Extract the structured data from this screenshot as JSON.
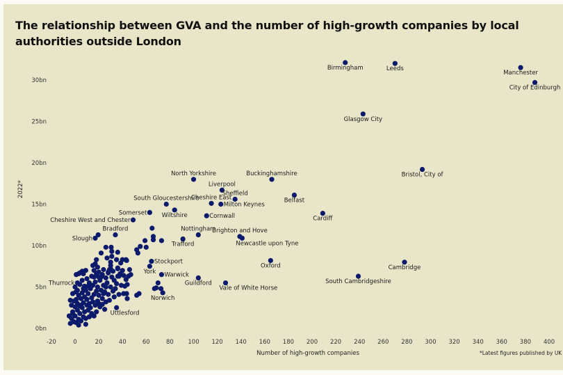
{
  "chart_data": {
    "type": "scatter",
    "title": "The relationship between GVA and the number of high-growth companies by local authorities outside London",
    "xlabel": "Number of high-growth companies",
    "ylabel": "2022*",
    "footnote": "*Latest figures published by UK go",
    "xlim": [
      -20,
      400
    ],
    "ylim": [
      0,
      30
    ],
    "x_ticks": [
      "-20",
      "0",
      "20",
      "40",
      "60",
      "80",
      "100",
      "120",
      "140",
      "160",
      "180",
      "200",
      "220",
      "240",
      "260",
      "280",
      "300",
      "320",
      "340",
      "360",
      "380",
      "400"
    ],
    "y_ticks": [
      "0bn",
      "5bn",
      "10bn",
      "15bn",
      "20bn",
      "25bn",
      "30bn"
    ],
    "y_tick_values": [
      0,
      5,
      10,
      15,
      20,
      25,
      30
    ],
    "x_tick_values": [
      -20,
      0,
      20,
      40,
      60,
      80,
      100,
      120,
      140,
      160,
      180,
      200,
      220,
      240,
      260,
      280,
      300,
      320,
      340,
      360,
      380,
      400
    ],
    "grid": false,
    "marker_color": "#0c1a6b",
    "labeled_points": [
      {
        "name": "Birmingham",
        "x": 228,
        "y": 32.1,
        "label_pos": "below"
      },
      {
        "name": "Leeds",
        "x": 270,
        "y": 32.0,
        "label_pos": "below"
      },
      {
        "name": "Manchester",
        "x": 376,
        "y": 31.5,
        "label_pos": "below"
      },
      {
        "name": "City of Edinburgh",
        "x": 388,
        "y": 29.7,
        "label_pos": "below"
      },
      {
        "name": "Glasgow City",
        "x": 243,
        "y": 25.9,
        "label_pos": "below"
      },
      {
        "name": "Bristol, City of",
        "x": 293,
        "y": 19.2,
        "label_pos": "below"
      },
      {
        "name": "Buckinghamshire",
        "x": 166,
        "y": 18.0,
        "label_pos": "above"
      },
      {
        "name": "North Yorkshire",
        "x": 100,
        "y": 18.0,
        "label_pos": "above"
      },
      {
        "name": "Liverpool",
        "x": 124,
        "y": 16.7,
        "label_pos": "above"
      },
      {
        "name": "Sheffield",
        "x": 135,
        "y": 15.6,
        "label_pos": "above"
      },
      {
        "name": "Belfast",
        "x": 185,
        "y": 16.1,
        "label_pos": "below"
      },
      {
        "name": "Cheshire East",
        "x": 115,
        "y": 15.1,
        "label_pos": "above"
      },
      {
        "name": "Milton Keynes",
        "x": 123,
        "y": 15.0,
        "label_pos": "right"
      },
      {
        "name": "Cardiff",
        "x": 209,
        "y": 13.9,
        "label_pos": "below"
      },
      {
        "name": "South Gloucestershire",
        "x": 77,
        "y": 15.0,
        "label_pos": "above"
      },
      {
        "name": "Somerset",
        "x": 63,
        "y": 14.0,
        "label_pos": "left"
      },
      {
        "name": "Wiltshire",
        "x": 84,
        "y": 14.3,
        "label_pos": "below"
      },
      {
        "name": "Cornwall",
        "x": 111,
        "y": 13.6,
        "label_pos": "right"
      },
      {
        "name": "Cheshire West and Chester",
        "x": 49,
        "y": 13.1,
        "label_pos": "left"
      },
      {
        "name": "Nottingham",
        "x": 104,
        "y": 11.3,
        "label_pos": "above"
      },
      {
        "name": "Brighton and Hove",
        "x": 139,
        "y": 11.1,
        "label_pos": "above"
      },
      {
        "name": "Newcastle upon Tyne",
        "x": 141,
        "y": 10.9,
        "label_pos": "below-right"
      },
      {
        "name": "Trafford",
        "x": 91,
        "y": 10.8,
        "label_pos": "below"
      },
      {
        "name": "Bradford",
        "x": 34,
        "y": 11.3,
        "label_pos": "above"
      },
      {
        "name": "Slough",
        "x": 17,
        "y": 10.9,
        "label_pos": "left"
      },
      {
        "name": "Stockport",
        "x": 64.5,
        "y": 8.1,
        "label_pos": "right"
      },
      {
        "name": "York",
        "x": 63,
        "y": 7.5,
        "label_pos": "below"
      },
      {
        "name": "Warwick",
        "x": 73,
        "y": 6.5,
        "label_pos": "right"
      },
      {
        "name": "Guildford",
        "x": 104,
        "y": 6.1,
        "label_pos": "below"
      },
      {
        "name": "Norwich",
        "x": 74,
        "y": 4.3,
        "label_pos": "below"
      },
      {
        "name": "Vale of White Horse",
        "x": 127,
        "y": 5.5,
        "label_pos": "below-right"
      },
      {
        "name": "Oxford",
        "x": 165,
        "y": 8.2,
        "label_pos": "below"
      },
      {
        "name": "Cambridge",
        "x": 278,
        "y": 8.0,
        "label_pos": "below"
      },
      {
        "name": "South Cambridgeshire",
        "x": 239,
        "y": 6.3,
        "label_pos": "below"
      },
      {
        "name": "Thurrock",
        "x": 2,
        "y": 5.5,
        "label_pos": "left"
      },
      {
        "name": "Uttlesford",
        "x": 35,
        "y": 2.5,
        "label_pos": "below-right"
      }
    ],
    "other_points": [
      [
        -5,
        1.5
      ],
      [
        -4,
        0.6
      ],
      [
        -3,
        1.2
      ],
      [
        -2,
        2
      ],
      [
        -1,
        0.8
      ],
      [
        0,
        1.5
      ],
      [
        1,
        0.7
      ],
      [
        2,
        2.2
      ],
      [
        3,
        1.1
      ],
      [
        4,
        1.8
      ],
      [
        5,
        0.9
      ],
      [
        6,
        2.5
      ],
      [
        7,
        1.4
      ],
      [
        8,
        2
      ],
      [
        9,
        1.2
      ],
      [
        10,
        2.8
      ],
      [
        -3,
        2.8
      ],
      [
        -1,
        3.3
      ],
      [
        0,
        2.6
      ],
      [
        1,
        3.5
      ],
      [
        2,
        3
      ],
      [
        3,
        4
      ],
      [
        4,
        2.7
      ],
      [
        5,
        3.6
      ],
      [
        6,
        4.3
      ],
      [
        7,
        3.1
      ],
      [
        8,
        3.8
      ],
      [
        9,
        4.6
      ],
      [
        10,
        3.5
      ],
      [
        11,
        4.2
      ],
      [
        12,
        3
      ],
      [
        13,
        4.8
      ],
      [
        14,
        3.7
      ],
      [
        15,
        5.2
      ],
      [
        16,
        4.1
      ],
      [
        17,
        5.6
      ],
      [
        18,
        4.5
      ],
      [
        19,
        5
      ],
      [
        20,
        4
      ],
      [
        21,
        5.8
      ],
      [
        22,
        4.6
      ],
      [
        23,
        3.6
      ],
      [
        24,
        5.2
      ],
      [
        25,
        4.4
      ],
      [
        26,
        3.2
      ],
      [
        27,
        5.5
      ],
      [
        28,
        4.1
      ],
      [
        29,
        3.4
      ],
      [
        30,
        5
      ],
      [
        32,
        4.5
      ],
      [
        33,
        3.8
      ],
      [
        -2,
        4.2
      ],
      [
        -4,
        3.4
      ],
      [
        0,
        5
      ],
      [
        2,
        4.6
      ],
      [
        4,
        5.3
      ],
      [
        6,
        5.8
      ],
      [
        8,
        5.1
      ],
      [
        10,
        6
      ],
      [
        12,
        5.5
      ],
      [
        14,
        6.3
      ],
      [
        16,
        7
      ],
      [
        17,
        7.8
      ],
      [
        18,
        6.6
      ],
      [
        20,
        6.8
      ],
      [
        22,
        6.2
      ],
      [
        24,
        7.1
      ],
      [
        11,
        2.2
      ],
      [
        13,
        2.5
      ],
      [
        15,
        3.2
      ],
      [
        17,
        2.8
      ],
      [
        19,
        3.3
      ],
      [
        21,
        2.6
      ],
      [
        23,
        2.9
      ],
      [
        25,
        2.3
      ],
      [
        14,
        1.8
      ],
      [
        12,
        1.4
      ],
      [
        9,
        0.5
      ],
      [
        3,
        0.4
      ],
      [
        -2,
        1.8
      ],
      [
        5,
        2.8
      ],
      [
        7,
        4.8
      ],
      [
        11,
        5.1
      ],
      [
        19,
        7.4
      ],
      [
        16,
        6.2
      ],
      [
        26,
        6.1
      ],
      [
        28,
        6.7
      ],
      [
        30,
        7.6
      ],
      [
        27,
        8.5
      ],
      [
        31,
        6.2
      ],
      [
        33,
        5.8
      ],
      [
        35,
        5.4
      ],
      [
        37,
        6.3
      ],
      [
        39,
        5.2
      ],
      [
        41,
        6.4
      ],
      [
        43,
        5.9
      ],
      [
        45,
        6.3
      ],
      [
        46,
        7.1
      ],
      [
        44,
        5.3
      ],
      [
        42,
        5.1
      ],
      [
        36,
        7.3
      ],
      [
        38,
        6.6
      ],
      [
        40,
        7.0
      ],
      [
        34,
        4.8
      ],
      [
        32,
        6.9
      ],
      [
        29,
        7.1
      ],
      [
        18,
        8.3
      ],
      [
        1,
        6.5
      ],
      [
        4,
        6.7
      ],
      [
        7,
        6.6
      ],
      [
        15,
        7.6
      ],
      [
        36,
        9.2
      ],
      [
        43,
        8.3
      ],
      [
        35,
        8.3
      ],
      [
        30,
        8.0
      ],
      [
        38.5,
        7.9
      ],
      [
        30,
        7.2
      ],
      [
        36,
        7.2
      ],
      [
        28,
        6.8
      ],
      [
        47,
        6.5
      ],
      [
        23,
        6.5
      ],
      [
        36,
        6.3
      ],
      [
        70,
        5.5
      ],
      [
        67,
        4.8
      ],
      [
        68.5,
        4.9
      ],
      [
        72.5,
        4.8
      ],
      [
        54,
        4.2
      ],
      [
        52,
        4.0
      ],
      [
        44,
        3.6
      ],
      [
        43.5,
        4.2
      ],
      [
        41,
        4.2
      ],
      [
        37,
        4.1
      ],
      [
        0.7,
        4.4
      ],
      [
        65,
        12.1
      ],
      [
        59,
        10.6
      ],
      [
        66,
        10.7
      ],
      [
        66,
        11.1
      ],
      [
        73,
        10.6
      ],
      [
        55,
        9.9
      ],
      [
        60,
        9.8
      ],
      [
        52,
        9.5
      ],
      [
        53,
        9.1
      ],
      [
        26,
        9.8
      ],
      [
        30.5,
        9.8
      ],
      [
        31,
        9.3
      ],
      [
        31,
        8.7
      ],
      [
        22,
        9.1
      ],
      [
        40,
        8.3
      ],
      [
        43.5,
        8.2
      ],
      [
        19.5,
        11.3
      ],
      [
        20,
        6.2
      ],
      [
        9,
        7
      ],
      [
        6,
        6.9
      ],
      [
        3,
        6.6
      ],
      [
        26,
        5
      ],
      [
        24,
        4.2
      ],
      [
        20,
        3
      ],
      [
        18,
        2
      ],
      [
        16,
        1.5
      ]
    ]
  }
}
